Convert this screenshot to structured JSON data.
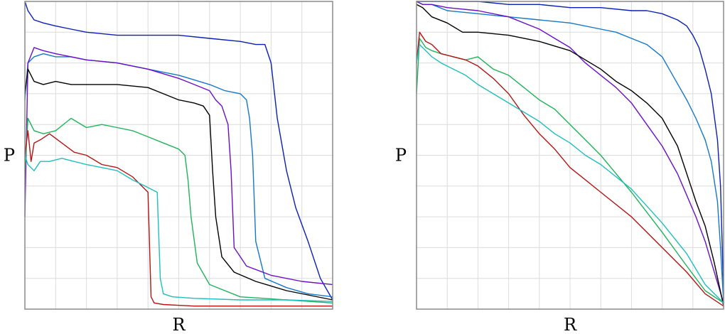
{
  "chart_data": [
    {
      "type": "line",
      "xlabel": "R",
      "ylabel": "P",
      "xlim": [
        0,
        1
      ],
      "ylim": [
        0,
        1
      ],
      "grid": true,
      "series": [
        {
          "color": "#0a1fb4",
          "x": [
            0.0,
            0.01,
            0.03,
            0.06,
            0.1,
            0.15,
            0.2,
            0.3,
            0.4,
            0.5,
            0.6,
            0.7,
            0.75,
            0.78,
            0.8,
            0.82,
            0.85,
            0.88,
            0.92,
            0.96,
            1.0
          ],
          "y": [
            1.0,
            0.97,
            0.94,
            0.93,
            0.92,
            0.91,
            0.9,
            0.89,
            0.89,
            0.89,
            0.88,
            0.87,
            0.86,
            0.86,
            0.8,
            0.62,
            0.45,
            0.33,
            0.22,
            0.1,
            0.03
          ]
        },
        {
          "color": "#1478c8",
          "x": [
            0.0,
            0.01,
            0.03,
            0.06,
            0.1,
            0.15,
            0.2,
            0.3,
            0.4,
            0.5,
            0.6,
            0.65,
            0.7,
            0.72,
            0.73,
            0.74,
            0.75,
            0.78,
            0.85,
            0.92,
            1.0
          ],
          "y": [
            0.68,
            0.8,
            0.82,
            0.83,
            0.82,
            0.82,
            0.81,
            0.8,
            0.78,
            0.76,
            0.73,
            0.71,
            0.7,
            0.68,
            0.62,
            0.5,
            0.22,
            0.1,
            0.07,
            0.05,
            0.04
          ]
        },
        {
          "color": "#6a0fc8",
          "x": [
            0.0,
            0.01,
            0.03,
            0.06,
            0.1,
            0.15,
            0.2,
            0.3,
            0.4,
            0.5,
            0.55,
            0.6,
            0.62,
            0.64,
            0.66,
            0.67,
            0.68,
            0.72,
            0.8,
            0.9,
            1.0
          ],
          "y": [
            0.3,
            0.8,
            0.85,
            0.84,
            0.83,
            0.82,
            0.81,
            0.8,
            0.78,
            0.75,
            0.73,
            0.71,
            0.68,
            0.66,
            0.6,
            0.45,
            0.2,
            0.14,
            0.11,
            0.09,
            0.08
          ]
        },
        {
          "color": "#000000",
          "x": [
            0.0,
            0.01,
            0.03,
            0.06,
            0.1,
            0.15,
            0.2,
            0.3,
            0.4,
            0.45,
            0.5,
            0.55,
            0.58,
            0.6,
            0.61,
            0.62,
            0.64,
            0.68,
            0.75,
            0.85,
            1.0
          ],
          "y": [
            0.7,
            0.78,
            0.74,
            0.73,
            0.74,
            0.73,
            0.73,
            0.73,
            0.72,
            0.7,
            0.68,
            0.67,
            0.66,
            0.63,
            0.45,
            0.3,
            0.17,
            0.12,
            0.09,
            0.06,
            0.03
          ]
        },
        {
          "color": "#1eb45a",
          "x": [
            0.0,
            0.01,
            0.03,
            0.06,
            0.1,
            0.15,
            0.2,
            0.25,
            0.3,
            0.35,
            0.4,
            0.45,
            0.5,
            0.52,
            0.53,
            0.54,
            0.56,
            0.6,
            0.7,
            0.85,
            1.0
          ],
          "y": [
            0.45,
            0.62,
            0.58,
            0.57,
            0.58,
            0.62,
            0.59,
            0.6,
            0.59,
            0.58,
            0.56,
            0.54,
            0.52,
            0.5,
            0.42,
            0.3,
            0.15,
            0.08,
            0.04,
            0.03,
            0.02
          ]
        },
        {
          "color": "#b41414",
          "x": [
            0.0,
            0.01,
            0.02,
            0.03,
            0.05,
            0.08,
            0.12,
            0.16,
            0.2,
            0.25,
            0.3,
            0.35,
            0.38,
            0.4,
            0.41,
            0.42,
            0.45,
            0.55,
            0.7,
            0.85,
            1.0
          ],
          "y": [
            0.5,
            0.58,
            0.48,
            0.54,
            0.55,
            0.57,
            0.54,
            0.51,
            0.5,
            0.47,
            0.46,
            0.43,
            0.4,
            0.38,
            0.04,
            0.02,
            0.015,
            0.01,
            0.01,
            0.01,
            0.01
          ]
        },
        {
          "color": "#1ebebe",
          "x": [
            0.0,
            0.01,
            0.03,
            0.05,
            0.08,
            0.12,
            0.16,
            0.2,
            0.25,
            0.3,
            0.35,
            0.39,
            0.41,
            0.43,
            0.44,
            0.45,
            0.48,
            0.55,
            0.7,
            0.85,
            1.0
          ],
          "y": [
            0.5,
            0.47,
            0.45,
            0.48,
            0.48,
            0.49,
            0.48,
            0.47,
            0.46,
            0.45,
            0.42,
            0.4,
            0.39,
            0.38,
            0.1,
            0.05,
            0.04,
            0.035,
            0.03,
            0.03,
            0.025
          ]
        }
      ]
    },
    {
      "type": "line",
      "xlabel": "R",
      "ylabel": "P",
      "xlim": [
        0,
        1
      ],
      "ylim": [
        0,
        1
      ],
      "grid": true,
      "series": [
        {
          "color": "#0a1fb4",
          "x": [
            0.0,
            0.02,
            0.05,
            0.1,
            0.2,
            0.3,
            0.4,
            0.5,
            0.6,
            0.7,
            0.75,
            0.8,
            0.85,
            0.88,
            0.9,
            0.92,
            0.94,
            0.96,
            0.98,
            0.99,
            1.0
          ],
          "y": [
            1.0,
            1.0,
            1.0,
            1.0,
            1.0,
            0.99,
            0.99,
            0.98,
            0.98,
            0.97,
            0.97,
            0.96,
            0.94,
            0.92,
            0.89,
            0.85,
            0.78,
            0.7,
            0.55,
            0.4,
            0.05
          ]
        },
        {
          "color": "#1478c8",
          "x": [
            0.0,
            0.02,
            0.05,
            0.1,
            0.2,
            0.3,
            0.4,
            0.5,
            0.6,
            0.65,
            0.7,
            0.75,
            0.8,
            0.84,
            0.88,
            0.91,
            0.94,
            0.96,
            0.98,
            0.99,
            1.0
          ],
          "y": [
            1.0,
            0.99,
            0.99,
            0.97,
            0.96,
            0.95,
            0.94,
            0.93,
            0.91,
            0.9,
            0.88,
            0.86,
            0.82,
            0.75,
            0.68,
            0.62,
            0.55,
            0.48,
            0.35,
            0.2,
            0.02
          ]
        },
        {
          "color": "#6a0fc8",
          "x": [
            0.0,
            0.02,
            0.05,
            0.1,
            0.2,
            0.3,
            0.4,
            0.45,
            0.5,
            0.55,
            0.6,
            0.65,
            0.7,
            0.75,
            0.8,
            0.85,
            0.88,
            0.91,
            0.94,
            0.97,
            1.0
          ],
          "y": [
            1.0,
            0.99,
            0.99,
            0.98,
            0.97,
            0.95,
            0.91,
            0.88,
            0.85,
            0.8,
            0.76,
            0.72,
            0.67,
            0.6,
            0.53,
            0.44,
            0.37,
            0.3,
            0.22,
            0.12,
            0.02
          ]
        },
        {
          "color": "#000000",
          "x": [
            0.0,
            0.02,
            0.05,
            0.1,
            0.15,
            0.2,
            0.3,
            0.4,
            0.5,
            0.55,
            0.6,
            0.65,
            0.7,
            0.75,
            0.8,
            0.85,
            0.88,
            0.91,
            0.94,
            0.97,
            1.0
          ],
          "y": [
            0.99,
            0.98,
            0.95,
            0.93,
            0.9,
            0.9,
            0.89,
            0.87,
            0.84,
            0.81,
            0.78,
            0.74,
            0.71,
            0.67,
            0.62,
            0.53,
            0.44,
            0.35,
            0.27,
            0.15,
            0.01
          ]
        },
        {
          "color": "#1eb45a",
          "x": [
            0.0,
            0.01,
            0.03,
            0.05,
            0.08,
            0.12,
            0.16,
            0.2,
            0.25,
            0.3,
            0.35,
            0.4,
            0.45,
            0.5,
            0.55,
            0.6,
            0.7,
            0.8,
            0.88,
            0.94,
            1.0
          ],
          "y": [
            0.7,
            0.88,
            0.85,
            0.84,
            0.83,
            0.82,
            0.81,
            0.82,
            0.78,
            0.76,
            0.72,
            0.68,
            0.65,
            0.6,
            0.55,
            0.5,
            0.38,
            0.25,
            0.14,
            0.06,
            0.02
          ]
        },
        {
          "color": "#b41414",
          "x": [
            0.0,
            0.01,
            0.03,
            0.05,
            0.08,
            0.12,
            0.16,
            0.2,
            0.25,
            0.3,
            0.35,
            0.4,
            0.45,
            0.5,
            0.55,
            0.6,
            0.7,
            0.8,
            0.88,
            0.94,
            1.0
          ],
          "y": [
            0.8,
            0.9,
            0.87,
            0.86,
            0.83,
            0.82,
            0.81,
            0.79,
            0.75,
            0.7,
            0.63,
            0.57,
            0.52,
            0.46,
            0.42,
            0.38,
            0.3,
            0.2,
            0.12,
            0.05,
            0.01
          ]
        },
        {
          "color": "#1ebebe",
          "x": [
            0.0,
            0.01,
            0.03,
            0.05,
            0.08,
            0.12,
            0.16,
            0.2,
            0.25,
            0.3,
            0.35,
            0.4,
            0.45,
            0.5,
            0.55,
            0.6,
            0.7,
            0.8,
            0.88,
            0.94,
            1.0
          ],
          "y": [
            0.8,
            0.86,
            0.84,
            0.82,
            0.8,
            0.78,
            0.76,
            0.73,
            0.7,
            0.67,
            0.64,
            0.61,
            0.57,
            0.54,
            0.5,
            0.47,
            0.39,
            0.28,
            0.18,
            0.08,
            0.02
          ]
        }
      ]
    }
  ]
}
